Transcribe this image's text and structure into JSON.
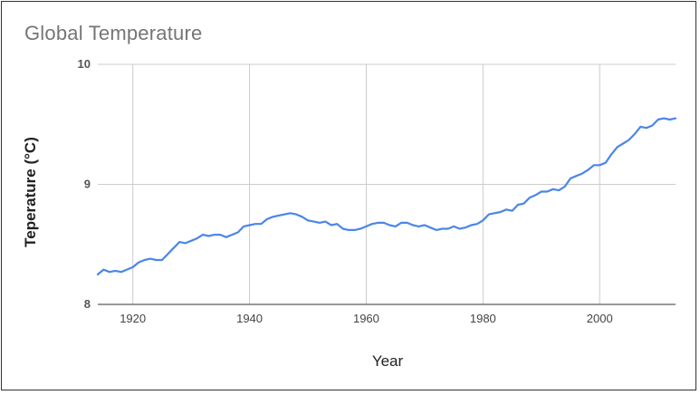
{
  "chart_data": {
    "type": "line",
    "title": "Global Temperature",
    "xlabel": "Year",
    "ylabel": "Teperature (°C)",
    "xlim": [
      1914,
      2013
    ],
    "ylim": [
      8,
      10
    ],
    "x_ticks": [
      1920,
      1940,
      1960,
      1980,
      2000
    ],
    "y_ticks": [
      8,
      9,
      10
    ],
    "grid": true,
    "legend": "none",
    "series": [
      {
        "color": "#4a86e8",
        "x": [
          1914,
          1915,
          1916,
          1917,
          1918,
          1919,
          1920,
          1921,
          1922,
          1923,
          1924,
          1925,
          1926,
          1927,
          1928,
          1929,
          1930,
          1931,
          1932,
          1933,
          1934,
          1935,
          1936,
          1937,
          1938,
          1939,
          1940,
          1941,
          1942,
          1943,
          1944,
          1945,
          1946,
          1947,
          1948,
          1949,
          1950,
          1951,
          1952,
          1953,
          1954,
          1955,
          1956,
          1957,
          1958,
          1959,
          1960,
          1961,
          1962,
          1963,
          1964,
          1965,
          1966,
          1967,
          1968,
          1969,
          1970,
          1971,
          1972,
          1973,
          1974,
          1975,
          1976,
          1977,
          1978,
          1979,
          1980,
          1981,
          1982,
          1983,
          1984,
          1985,
          1986,
          1987,
          1988,
          1989,
          1990,
          1991,
          1992,
          1993,
          1994,
          1995,
          1996,
          1997,
          1998,
          1999,
          2000,
          2001,
          2002,
          2003,
          2004,
          2005,
          2006,
          2007,
          2008,
          2009,
          2010,
          2011,
          2012,
          2013
        ],
        "y": [
          8.25,
          8.29,
          8.27,
          8.28,
          8.27,
          8.29,
          8.31,
          8.35,
          8.37,
          8.38,
          8.37,
          8.37,
          8.42,
          8.47,
          8.52,
          8.51,
          8.53,
          8.55,
          8.58,
          8.57,
          8.58,
          8.58,
          8.56,
          8.58,
          8.6,
          8.65,
          8.66,
          8.67,
          8.67,
          8.71,
          8.73,
          8.74,
          8.75,
          8.76,
          8.75,
          8.73,
          8.7,
          8.69,
          8.68,
          8.69,
          8.66,
          8.67,
          8.63,
          8.62,
          8.62,
          8.63,
          8.65,
          8.67,
          8.68,
          8.68,
          8.66,
          8.65,
          8.68,
          8.68,
          8.66,
          8.65,
          8.66,
          8.64,
          8.62,
          8.63,
          8.63,
          8.65,
          8.63,
          8.64,
          8.66,
          8.67,
          8.7,
          8.75,
          8.76,
          8.77,
          8.79,
          8.78,
          8.83,
          8.84,
          8.89,
          8.91,
          8.94,
          8.94,
          8.96,
          8.95,
          8.98,
          9.05,
          9.07,
          9.09,
          9.12,
          9.16,
          9.16,
          9.18,
          9.25,
          9.31,
          9.34,
          9.37,
          9.42,
          9.48,
          9.47,
          9.49,
          9.54,
          9.55,
          9.54,
          9.55
        ]
      }
    ]
  }
}
